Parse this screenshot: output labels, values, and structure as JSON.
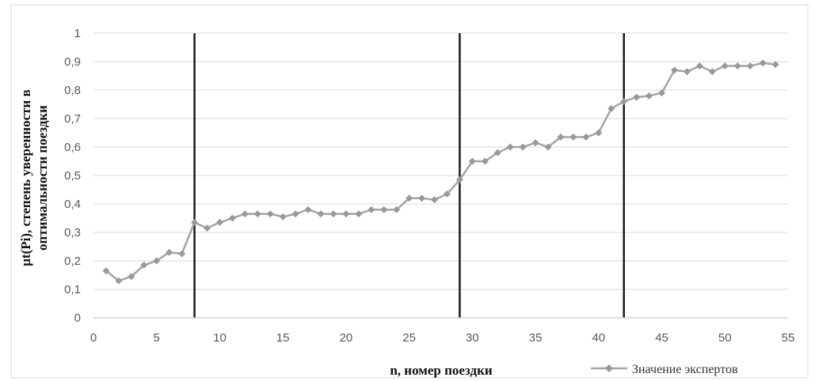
{
  "chart_data": {
    "type": "line",
    "xlabel": "n, номер поездки",
    "ylabel": "μt(Pi), степень уверенности в оптимальности поездки",
    "ylabel_lines": [
      "μt(Pi), степень уверенности в",
      "оптимальности поездки"
    ],
    "xlim": [
      0,
      55
    ],
    "ylim": [
      0,
      1
    ],
    "x_ticks": [
      0,
      5,
      10,
      15,
      20,
      25,
      30,
      35,
      40,
      45,
      50,
      55
    ],
    "y_ticks": [
      0,
      0.1,
      0.2,
      0.3,
      0.4,
      0.5,
      0.6,
      0.7,
      0.8,
      0.9,
      1
    ],
    "x_tick_labels": [
      "0",
      "5",
      "10",
      "15",
      "20",
      "25",
      "30",
      "35",
      "40",
      "45",
      "50",
      "55"
    ],
    "y_tick_labels": [
      "0",
      "0,1",
      "0,2",
      "0,3",
      "0,4",
      "0,5",
      "0,6",
      "0,7",
      "0,8",
      "0,9",
      "1"
    ],
    "grid": "horizontal",
    "legend_position": "bottom-right",
    "vertical_lines": [
      8,
      29,
      42
    ],
    "colors": {
      "series": "#a5a5a5",
      "marker": "#999999",
      "vlines": "#1a1a1a",
      "grid": "#d9d9d9",
      "axis": "#bfbfbf",
      "frame": "#d9d9d9"
    },
    "series": [
      {
        "name": "Значение экспертов",
        "x": [
          1,
          2,
          3,
          4,
          5,
          6,
          7,
          8,
          9,
          10,
          11,
          12,
          13,
          14,
          15,
          16,
          17,
          18,
          19,
          20,
          21,
          22,
          23,
          24,
          25,
          26,
          27,
          28,
          29,
          30,
          31,
          32,
          33,
          34,
          35,
          36,
          37,
          38,
          39,
          40,
          41,
          42,
          43,
          44,
          45,
          46,
          47,
          48,
          49,
          50,
          51,
          52,
          53,
          54
        ],
        "values": [
          0.165,
          0.13,
          0.145,
          0.185,
          0.2,
          0.23,
          0.225,
          0.335,
          0.315,
          0.335,
          0.35,
          0.365,
          0.365,
          0.365,
          0.355,
          0.365,
          0.38,
          0.365,
          0.365,
          0.365,
          0.365,
          0.38,
          0.38,
          0.38,
          0.42,
          0.42,
          0.415,
          0.435,
          0.485,
          0.55,
          0.55,
          0.58,
          0.6,
          0.6,
          0.615,
          0.6,
          0.635,
          0.635,
          0.635,
          0.65,
          0.735,
          0.76,
          0.775,
          0.78,
          0.79,
          0.87,
          0.865,
          0.885,
          0.865,
          0.885,
          0.885,
          0.885,
          0.895,
          0.89
        ]
      }
    ]
  }
}
